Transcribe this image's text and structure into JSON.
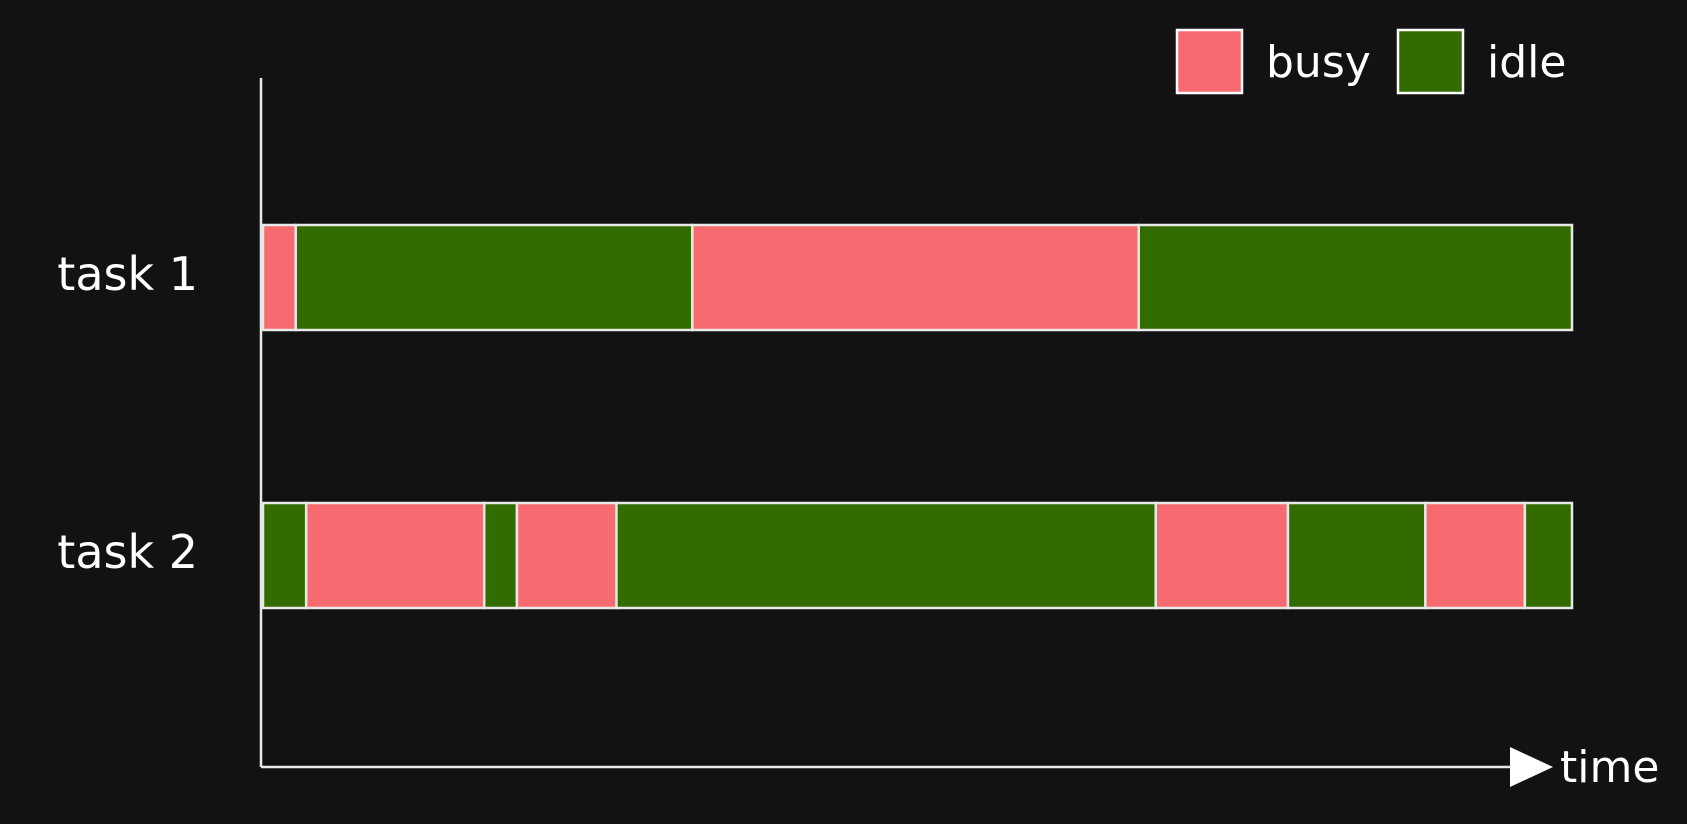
{
  "colors": {
    "background": "#121212",
    "busy": "#f76a6f",
    "idle": "#326b00",
    "stroke": "#e8e8e8",
    "text": "#ffffff"
  },
  "chart_data": {
    "type": "timeline",
    "xlabel": "time",
    "ylabel": "",
    "xlim": [
      0,
      100
    ],
    "legend": {
      "placement": "top-right",
      "entries": [
        {
          "state": "busy",
          "label": "busy",
          "color": "#f76a6f"
        },
        {
          "state": "idle",
          "label": "idle",
          "color": "#326b00"
        }
      ]
    },
    "rows": [
      {
        "label": "task 1",
        "segments": [
          {
            "start": 0,
            "end": 2.5,
            "state": "busy"
          },
          {
            "start": 2.5,
            "end": 32.8,
            "state": "idle"
          },
          {
            "start": 32.8,
            "end": 66.9,
            "state": "busy"
          },
          {
            "start": 66.9,
            "end": 100,
            "state": "idle"
          }
        ]
      },
      {
        "label": "task 2",
        "segments": [
          {
            "start": 0,
            "end": 3.3,
            "state": "idle"
          },
          {
            "start": 3.3,
            "end": 16.9,
            "state": "busy"
          },
          {
            "start": 16.9,
            "end": 19.4,
            "state": "idle"
          },
          {
            "start": 19.4,
            "end": 27.0,
            "state": "busy"
          },
          {
            "start": 27.0,
            "end": 68.2,
            "state": "idle"
          },
          {
            "start": 68.2,
            "end": 78.3,
            "state": "busy"
          },
          {
            "start": 78.3,
            "end": 88.8,
            "state": "idle"
          },
          {
            "start": 88.8,
            "end": 96.4,
            "state": "busy"
          },
          {
            "start": 96.4,
            "end": 100,
            "state": "idle"
          }
        ]
      }
    ]
  }
}
